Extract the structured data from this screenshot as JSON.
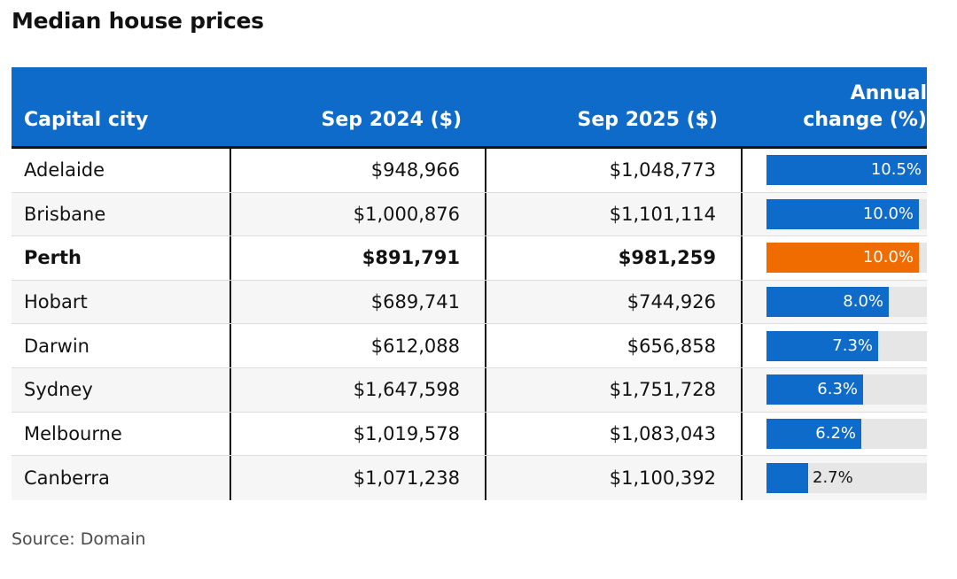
{
  "title": "Median house prices",
  "source": "Source: Domain",
  "colors": {
    "header_bg": "#0f6bc9",
    "bar": "#0f6bc9",
    "highlight_bar": "#f06c00",
    "track": "#e6e6e6"
  },
  "chart_data": {
    "type": "table",
    "title": "Median house prices",
    "columns": [
      "Capital city",
      "Sep 2024 ($)",
      "Sep 2025 ($)",
      "Annual change (%)"
    ],
    "column_header_lines": [
      [
        "Capital city"
      ],
      [
        "Sep 2024 ($)"
      ],
      [
        "Sep 2025 ($)"
      ],
      [
        "Annual",
        "change (%)"
      ]
    ],
    "bar_max": 10.5,
    "rows": [
      {
        "city": "Adelaide",
        "sep2024": "$948,966",
        "sep2025": "$1,048,773",
        "change": 10.5,
        "change_label": "10.5%",
        "highlight": false
      },
      {
        "city": "Brisbane",
        "sep2024": "$1,000,876",
        "sep2025": "$1,101,114",
        "change": 10.0,
        "change_label": "10.0%",
        "highlight": false
      },
      {
        "city": "Perth",
        "sep2024": "$891,791",
        "sep2025": "$981,259",
        "change": 10.0,
        "change_label": "10.0%",
        "highlight": true
      },
      {
        "city": "Hobart",
        "sep2024": "$689,741",
        "sep2025": "$744,926",
        "change": 8.0,
        "change_label": "8.0%",
        "highlight": false
      },
      {
        "city": "Darwin",
        "sep2024": "$612,088",
        "sep2025": "$656,858",
        "change": 7.3,
        "change_label": "7.3%",
        "highlight": false
      },
      {
        "city": "Sydney",
        "sep2024": "$1,647,598",
        "sep2025": "$1,751,728",
        "change": 6.3,
        "change_label": "6.3%",
        "highlight": false
      },
      {
        "city": "Melbourne",
        "sep2024": "$1,019,578",
        "sep2025": "$1,083,043",
        "change": 6.2,
        "change_label": "6.2%",
        "highlight": false
      },
      {
        "city": "Canberra",
        "sep2024": "$1,071,238",
        "sep2025": "$1,100,392",
        "change": 2.7,
        "change_label": "2.7%",
        "highlight": false
      }
    ]
  }
}
